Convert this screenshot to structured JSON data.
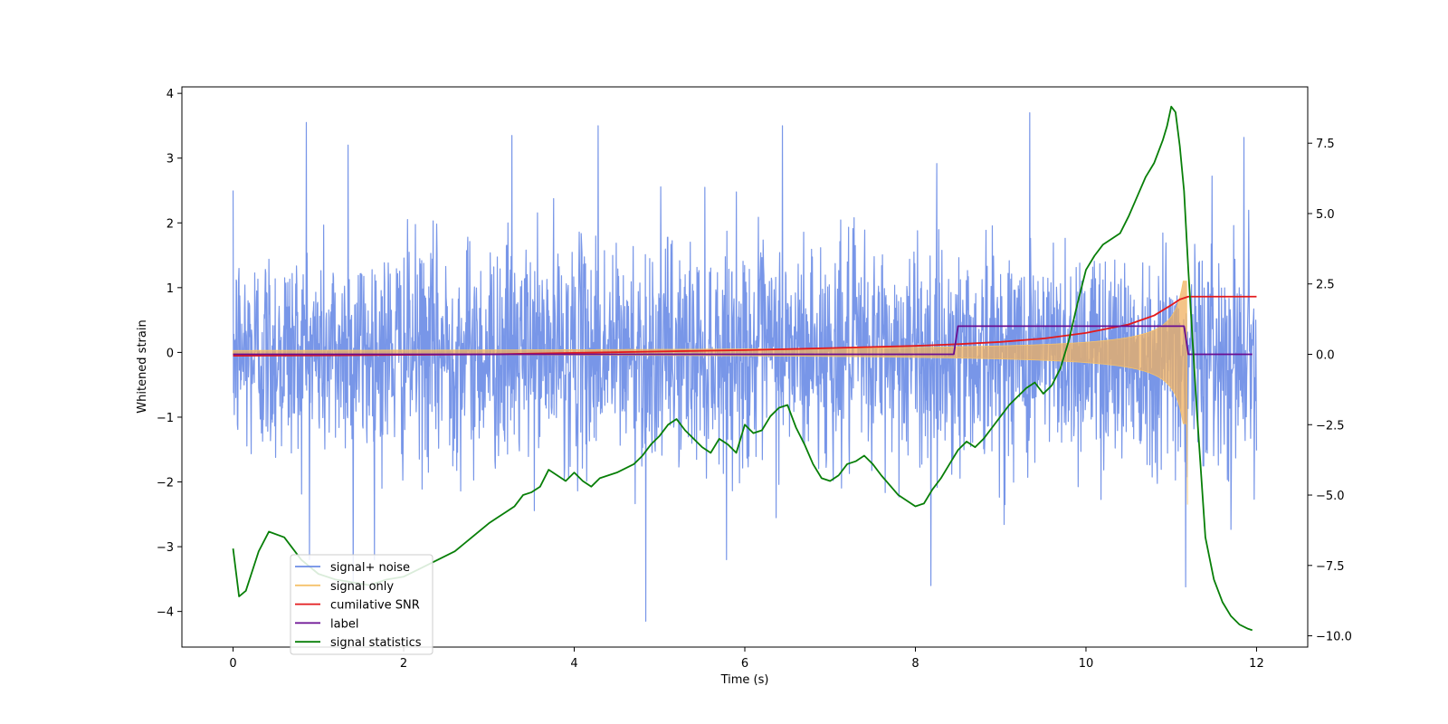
{
  "chart_data": {
    "type": "line",
    "title": "",
    "xlabel": "Time (s)",
    "ylabel": "Whitened strain",
    "xlim": [
      -0.6,
      12.6
    ],
    "ylim": [
      -4.55,
      4.1
    ],
    "ylim_right": [
      -10.4,
      9.5
    ],
    "x_ticks": [
      0,
      2,
      4,
      6,
      8,
      10,
      12
    ],
    "y_ticks": [
      -4,
      -3,
      -2,
      -1,
      0,
      1,
      2,
      3,
      4
    ],
    "y2_ticks": [
      -10.0,
      -7.5,
      -5.0,
      -2.5,
      0.0,
      2.5,
      5.0,
      7.5
    ],
    "legend_position": "lower-left",
    "series": [
      {
        "name": "signal+ noise",
        "axis": "left",
        "color": "#6d8de6",
        "style": "noise",
        "duration": 12.0,
        "std": 0.85,
        "peaks": [
          [
            0.0,
            2.5
          ],
          [
            0.86,
            3.55
          ],
          [
            1.35,
            3.2
          ],
          [
            1.41,
            -3.6
          ],
          [
            3.27,
            3.35
          ],
          [
            4.28,
            3.5
          ],
          [
            4.84,
            -4.15
          ],
          [
            6.44,
            3.5
          ],
          [
            8.18,
            -3.6
          ],
          [
            9.34,
            3.7
          ],
          [
            11.17,
            -3.62
          ],
          [
            11.85,
            3.32
          ]
        ]
      },
      {
        "name": "signal only",
        "axis": "left",
        "color": "#f5c26b",
        "style": "chirp",
        "start_amplitude": 0.03,
        "end_amplitude": 1.1,
        "merger_time": 11.18,
        "ringdown_min": -2.35
      },
      {
        "name": "cumilative SNR",
        "axis": "right",
        "color": "#e31a1c",
        "style": "line",
        "x": [
          0,
          1,
          2,
          3,
          4,
          5,
          6,
          7,
          8,
          8.5,
          9,
          9.5,
          10,
          10.5,
          10.8,
          11.0,
          11.1,
          11.2,
          12.0
        ],
        "values": [
          -0.05,
          -0.04,
          -0.02,
          0.0,
          0.05,
          0.1,
          0.15,
          0.22,
          0.3,
          0.36,
          0.44,
          0.56,
          0.76,
          1.06,
          1.38,
          1.75,
          1.95,
          2.05,
          2.05
        ]
      },
      {
        "name": "label",
        "axis": "right",
        "color": "#6a0d91",
        "style": "step",
        "x": [
          0,
          8.45,
          8.5,
          11.15,
          11.2,
          11.95
        ],
        "values": [
          0,
          0,
          1,
          1,
          0,
          0
        ]
      },
      {
        "name": "signal statistics",
        "axis": "right",
        "color": "#087f08",
        "style": "line",
        "x": [
          0,
          0.07,
          0.15,
          0.3,
          0.42,
          0.6,
          0.8,
          1.0,
          1.2,
          1.4,
          1.6,
          1.8,
          2.0,
          2.2,
          2.4,
          2.6,
          2.8,
          3.0,
          3.1,
          3.2,
          3.3,
          3.4,
          3.5,
          3.6,
          3.7,
          3.8,
          3.9,
          4.0,
          4.1,
          4.2,
          4.3,
          4.5,
          4.7,
          4.8,
          4.9,
          5.0,
          5.1,
          5.2,
          5.3,
          5.4,
          5.5,
          5.6,
          5.7,
          5.8,
          5.9,
          6.0,
          6.1,
          6.2,
          6.3,
          6.4,
          6.5,
          6.6,
          6.7,
          6.8,
          6.9,
          7.0,
          7.1,
          7.2,
          7.3,
          7.4,
          7.5,
          7.6,
          7.8,
          8.0,
          8.1,
          8.2,
          8.3,
          8.4,
          8.5,
          8.6,
          8.7,
          8.8,
          8.9,
          9.0,
          9.1,
          9.2,
          9.3,
          9.4,
          9.5,
          9.6,
          9.7,
          9.8,
          9.9,
          10.0,
          10.1,
          10.2,
          10.3,
          10.4,
          10.5,
          10.6,
          10.7,
          10.8,
          10.9,
          10.95,
          11.0,
          11.05,
          11.1,
          11.15,
          11.2,
          11.3,
          11.4,
          11.5,
          11.6,
          11.7,
          11.8,
          11.9,
          11.95
        ],
        "values": [
          -6.9,
          -8.6,
          -8.4,
          -7.0,
          -6.3,
          -6.5,
          -7.3,
          -7.8,
          -8.0,
          -8.1,
          -8.2,
          -8.0,
          -7.9,
          -7.6,
          -7.3,
          -7.0,
          -6.5,
          -6.0,
          -5.8,
          -5.6,
          -5.4,
          -5.0,
          -4.9,
          -4.7,
          -4.1,
          -4.3,
          -4.5,
          -4.2,
          -4.5,
          -4.7,
          -4.4,
          -4.2,
          -3.9,
          -3.6,
          -3.2,
          -2.9,
          -2.5,
          -2.3,
          -2.7,
          -3.0,
          -3.3,
          -3.5,
          -3.0,
          -3.2,
          -3.5,
          -2.5,
          -2.8,
          -2.7,
          -2.2,
          -1.9,
          -1.8,
          -2.6,
          -3.2,
          -3.9,
          -4.4,
          -4.5,
          -4.3,
          -3.9,
          -3.8,
          -3.6,
          -3.9,
          -4.3,
          -5.0,
          -5.4,
          -5.3,
          -4.8,
          -4.4,
          -3.9,
          -3.4,
          -3.1,
          -3.3,
          -3.0,
          -2.6,
          -2.2,
          -1.8,
          -1.5,
          -1.2,
          -1.0,
          -1.4,
          -1.1,
          -0.5,
          0.5,
          1.8,
          3.0,
          3.5,
          3.9,
          4.1,
          4.3,
          4.9,
          5.6,
          6.3,
          6.8,
          7.6,
          8.1,
          8.8,
          8.6,
          7.4,
          5.8,
          3.0,
          -2.0,
          -6.5,
          -8.0,
          -8.8,
          -9.3,
          -9.6,
          -9.75,
          -9.8
        ]
      }
    ]
  }
}
